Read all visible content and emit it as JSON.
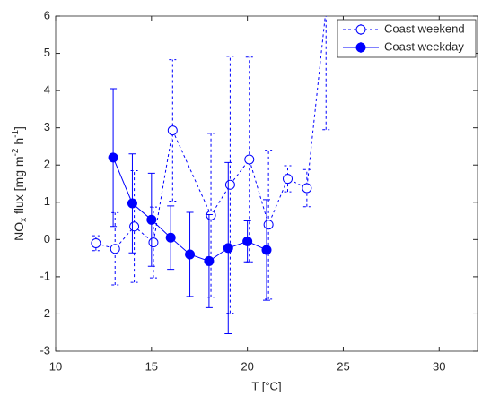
{
  "chart_data": {
    "type": "errorbar",
    "xlabel": "T [°C]",
    "ylabel_parts": [
      "NO",
      "x",
      " flux [mg m",
      "-2",
      " h",
      "-1",
      "]"
    ],
    "xlim": [
      10,
      32
    ],
    "xticks": [
      10,
      15,
      20,
      25,
      30
    ],
    "ylim": [
      -3,
      6
    ],
    "yticks": [
      -3,
      -2,
      -1,
      0,
      1,
      2,
      3,
      4,
      5,
      6
    ],
    "legend": "upper right",
    "series": [
      {
        "name": "Coast weekend",
        "color": "#0000ff",
        "style": "dashed",
        "marker": "open",
        "x": [
          12.1,
          13.1,
          14.1,
          15.1,
          16.1,
          18.1,
          19.1,
          20.1,
          21.1,
          22.1,
          23.1,
          24.1
        ],
        "values": [
          -0.1,
          -0.25,
          0.35,
          -0.08,
          2.93,
          0.65,
          1.47,
          2.15,
          0.4,
          1.63,
          1.38,
          6.2
        ],
        "errors": [
          0.2,
          0.97,
          1.5,
          0.95,
          1.9,
          2.2,
          3.45,
          2.75,
          2.0,
          0.35,
          0.5,
          3.25
        ]
      },
      {
        "name": "Coast weekday",
        "color": "#0000ff",
        "style": "solid",
        "marker": "filled",
        "x": [
          13,
          14,
          15,
          16,
          17,
          18,
          19,
          20,
          21
        ],
        "values": [
          2.2,
          0.97,
          0.53,
          0.05,
          -0.4,
          -0.58,
          -0.23,
          -0.05,
          -0.28
        ],
        "errors": [
          1.85,
          1.33,
          1.25,
          0.85,
          1.13,
          1.25,
          2.3,
          0.55,
          1.35
        ]
      }
    ]
  }
}
